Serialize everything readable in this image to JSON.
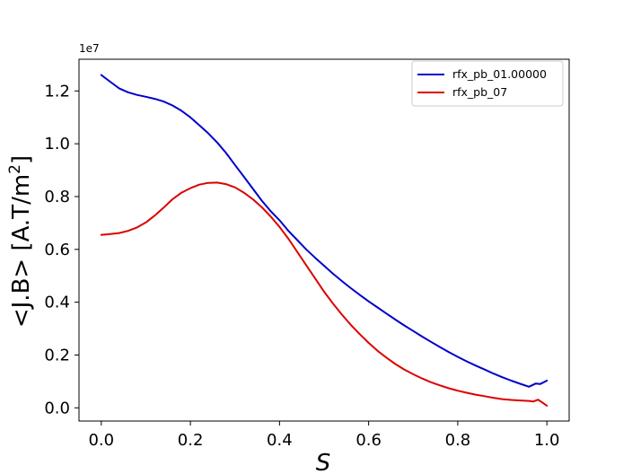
{
  "chart_data": {
    "type": "line",
    "title": "",
    "xlabel": "S",
    "ylabel": "<J.B> [A.T/m",
    "ylabel_sup": "2",
    "ylabel_suffix": "]",
    "y_offset_text": "1e7",
    "xlim": [
      -0.05,
      1.05
    ],
    "ylim": [
      -0.05,
      1.32
    ],
    "x_ticks": [
      0.0,
      0.2,
      0.4,
      0.6,
      0.8,
      1.0
    ],
    "x_tick_labels": [
      "0.0",
      "0.2",
      "0.4",
      "0.6",
      "0.8",
      "1.0"
    ],
    "y_ticks": [
      0.0,
      0.2,
      0.4,
      0.6,
      0.8,
      1.0,
      1.2
    ],
    "y_tick_labels": [
      "0.0",
      "0.2",
      "0.4",
      "0.6",
      "0.8",
      "1.0",
      "1.2"
    ],
    "grid": false,
    "legend_position": "top-right",
    "series": [
      {
        "name": "rfx_pb_01.00000",
        "color": "#0000cc",
        "x": [
          0.0,
          0.02,
          0.04,
          0.06,
          0.08,
          0.1,
          0.12,
          0.14,
          0.16,
          0.18,
          0.2,
          0.22,
          0.24,
          0.26,
          0.28,
          0.3,
          0.32,
          0.34,
          0.36,
          0.38,
          0.4,
          0.42,
          0.44,
          0.46,
          0.48,
          0.5,
          0.52,
          0.54,
          0.56,
          0.58,
          0.6,
          0.62,
          0.64,
          0.66,
          0.68,
          0.7,
          0.72,
          0.74,
          0.76,
          0.78,
          0.8,
          0.82,
          0.84,
          0.86,
          0.88,
          0.9,
          0.92,
          0.94,
          0.96,
          0.975,
          0.985,
          1.0
        ],
        "y": [
          1.26,
          1.235,
          1.21,
          1.195,
          1.185,
          1.178,
          1.17,
          1.16,
          1.145,
          1.125,
          1.1,
          1.07,
          1.04,
          1.005,
          0.965,
          0.92,
          0.875,
          0.83,
          0.785,
          0.745,
          0.71,
          0.67,
          0.635,
          0.6,
          0.568,
          0.538,
          0.508,
          0.48,
          0.453,
          0.428,
          0.403,
          0.38,
          0.357,
          0.334,
          0.312,
          0.291,
          0.27,
          0.25,
          0.23,
          0.211,
          0.193,
          0.176,
          0.16,
          0.145,
          0.13,
          0.116,
          0.103,
          0.091,
          0.08,
          0.092,
          0.09,
          0.103
        ]
      },
      {
        "name": "rfx_pb_07",
        "color": "#dd0000",
        "x": [
          0.0,
          0.02,
          0.04,
          0.06,
          0.08,
          0.1,
          0.12,
          0.14,
          0.16,
          0.18,
          0.2,
          0.22,
          0.24,
          0.26,
          0.28,
          0.3,
          0.32,
          0.34,
          0.36,
          0.38,
          0.4,
          0.42,
          0.44,
          0.46,
          0.48,
          0.5,
          0.52,
          0.54,
          0.56,
          0.58,
          0.6,
          0.62,
          0.64,
          0.66,
          0.68,
          0.7,
          0.72,
          0.74,
          0.76,
          0.78,
          0.8,
          0.82,
          0.84,
          0.86,
          0.88,
          0.9,
          0.92,
          0.94,
          0.96,
          0.97,
          0.98,
          0.99,
          1.0
        ],
        "y": [
          0.655,
          0.658,
          0.662,
          0.67,
          0.683,
          0.702,
          0.728,
          0.758,
          0.79,
          0.815,
          0.832,
          0.845,
          0.852,
          0.853,
          0.847,
          0.835,
          0.815,
          0.79,
          0.76,
          0.725,
          0.685,
          0.64,
          0.59,
          0.54,
          0.49,
          0.44,
          0.395,
          0.353,
          0.314,
          0.279,
          0.246,
          0.216,
          0.19,
          0.166,
          0.145,
          0.127,
          0.111,
          0.097,
          0.085,
          0.074,
          0.065,
          0.057,
          0.05,
          0.044,
          0.038,
          0.033,
          0.03,
          0.028,
          0.026,
          0.024,
          0.031,
          0.02,
          0.008
        ]
      }
    ]
  }
}
